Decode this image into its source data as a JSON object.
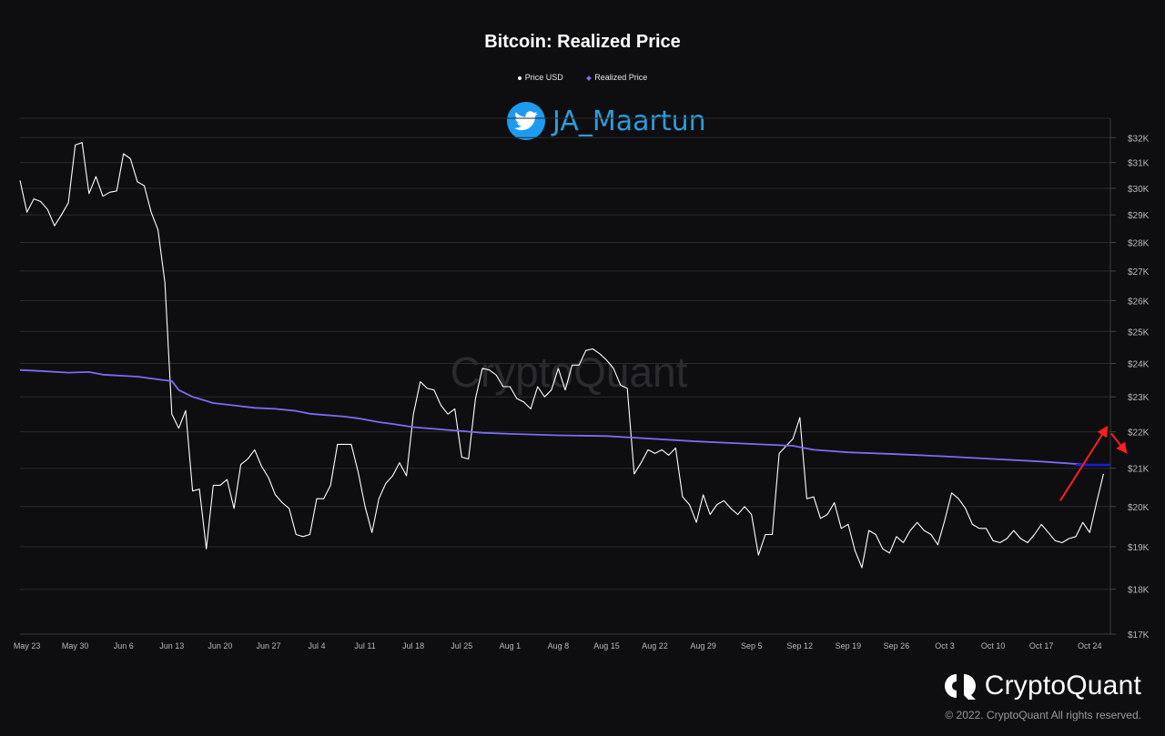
{
  "chart_data": {
    "type": "line",
    "title": "Bitcoin: Realized Price",
    "legend": [
      {
        "label": "Price USD",
        "color": "#ffffff",
        "marker": "dot"
      },
      {
        "label": "Realized Price",
        "color": "#7b6cf6",
        "marker": "diamond"
      }
    ],
    "legend_placement": "top-center",
    "watermark": "CryptoQuant",
    "handle": "JA_Maartun",
    "x_start": "2022-05-22",
    "x_end": "2022-10-27",
    "x_ticks": [
      {
        "date": "2022-05-23",
        "label": "May 23"
      },
      {
        "date": "2022-05-30",
        "label": "May 30"
      },
      {
        "date": "2022-06-06",
        "label": "Jun 6"
      },
      {
        "date": "2022-06-13",
        "label": "Jun 13"
      },
      {
        "date": "2022-06-20",
        "label": "Jun 20"
      },
      {
        "date": "2022-06-27",
        "label": "Jun 27"
      },
      {
        "date": "2022-07-04",
        "label": "Jul 4"
      },
      {
        "date": "2022-07-11",
        "label": "Jul 11"
      },
      {
        "date": "2022-07-18",
        "label": "Jul 18"
      },
      {
        "date": "2022-07-25",
        "label": "Jul 25"
      },
      {
        "date": "2022-08-01",
        "label": "Aug 1"
      },
      {
        "date": "2022-08-08",
        "label": "Aug 8"
      },
      {
        "date": "2022-08-15",
        "label": "Aug 15"
      },
      {
        "date": "2022-08-22",
        "label": "Aug 22"
      },
      {
        "date": "2022-08-29",
        "label": "Aug 29"
      },
      {
        "date": "2022-09-05",
        "label": "Sep 5"
      },
      {
        "date": "2022-09-12",
        "label": "Sep 12"
      },
      {
        "date": "2022-09-19",
        "label": "Sep 19"
      },
      {
        "date": "2022-09-26",
        "label": "Sep 26"
      },
      {
        "date": "2022-10-03",
        "label": "Oct 3"
      },
      {
        "date": "2022-10-10",
        "label": "Oct 10"
      },
      {
        "date": "2022-10-17",
        "label": "Oct 17"
      },
      {
        "date": "2022-10-24",
        "label": "Oct 24"
      }
    ],
    "y_scale": "log",
    "ylim": [
      17000,
      32800
    ],
    "y_ticks": [
      {
        "value": 17000,
        "label": "$17K"
      },
      {
        "value": 18000,
        "label": "$18K"
      },
      {
        "value": 19000,
        "label": "$19K"
      },
      {
        "value": 20000,
        "label": "$20K"
      },
      {
        "value": 21000,
        "label": "$21K"
      },
      {
        "value": 22000,
        "label": "$22K"
      },
      {
        "value": 23000,
        "label": "$23K"
      },
      {
        "value": 24000,
        "label": "$24K"
      },
      {
        "value": 25000,
        "label": "$25K"
      },
      {
        "value": 26000,
        "label": "$26K"
      },
      {
        "value": 27000,
        "label": "$27K"
      },
      {
        "value": 28000,
        "label": "$28K"
      },
      {
        "value": 29000,
        "label": "$29K"
      },
      {
        "value": 30000,
        "label": "$30K"
      },
      {
        "value": 31000,
        "label": "$31K"
      },
      {
        "value": 32000,
        "label": "$32K"
      }
    ],
    "grid": true,
    "series": [
      {
        "name": "Price USD",
        "color": "#ffffff",
        "points": [
          [
            "2022-05-22",
            30300
          ],
          [
            "2022-05-23",
            29100
          ],
          [
            "2022-05-24",
            29600
          ],
          [
            "2022-05-25",
            29500
          ],
          [
            "2022-05-26",
            29200
          ],
          [
            "2022-05-27",
            28600
          ],
          [
            "2022-05-28",
            29000
          ],
          [
            "2022-05-29",
            29450
          ],
          [
            "2022-05-30",
            31700
          ],
          [
            "2022-05-31",
            31800
          ],
          [
            "2022-06-01",
            29800
          ],
          [
            "2022-06-02",
            30450
          ],
          [
            "2022-06-03",
            29700
          ],
          [
            "2022-06-04",
            29850
          ],
          [
            "2022-06-05",
            29900
          ],
          [
            "2022-06-06",
            31350
          ],
          [
            "2022-06-07",
            31150
          ],
          [
            "2022-06-08",
            30250
          ],
          [
            "2022-06-09",
            30100
          ],
          [
            "2022-06-10",
            29100
          ],
          [
            "2022-06-11",
            28450
          ],
          [
            "2022-06-12",
            26600
          ],
          [
            "2022-06-13",
            22500
          ],
          [
            "2022-06-14",
            22100
          ],
          [
            "2022-06-15",
            22600
          ],
          [
            "2022-06-16",
            20400
          ],
          [
            "2022-06-17",
            20450
          ],
          [
            "2022-06-18",
            18950
          ],
          [
            "2022-06-19",
            20550
          ],
          [
            "2022-06-20",
            20550
          ],
          [
            "2022-06-21",
            20700
          ],
          [
            "2022-06-22",
            19950
          ],
          [
            "2022-06-23",
            21100
          ],
          [
            "2022-06-24",
            21250
          ],
          [
            "2022-06-25",
            21500
          ],
          [
            "2022-06-26",
            21050
          ],
          [
            "2022-06-27",
            20750
          ],
          [
            "2022-06-28",
            20300
          ],
          [
            "2022-06-29",
            20100
          ],
          [
            "2022-06-30",
            19950
          ],
          [
            "2022-07-01",
            19300
          ],
          [
            "2022-07-02",
            19250
          ],
          [
            "2022-07-03",
            19300
          ],
          [
            "2022-07-04",
            20200
          ],
          [
            "2022-07-05",
            20200
          ],
          [
            "2022-07-06",
            20550
          ],
          [
            "2022-07-07",
            21650
          ],
          [
            "2022-07-08",
            21650
          ],
          [
            "2022-07-09",
            21650
          ],
          [
            "2022-07-10",
            20900
          ],
          [
            "2022-07-11",
            20000
          ],
          [
            "2022-07-12",
            19350
          ],
          [
            "2022-07-13",
            20200
          ],
          [
            "2022-07-14",
            20600
          ],
          [
            "2022-07-15",
            20800
          ],
          [
            "2022-07-16",
            21150
          ],
          [
            "2022-07-17",
            20800
          ],
          [
            "2022-07-18",
            22500
          ],
          [
            "2022-07-19",
            23450
          ],
          [
            "2022-07-20",
            23250
          ],
          [
            "2022-07-21",
            23200
          ],
          [
            "2022-07-22",
            22750
          ],
          [
            "2022-07-23",
            22500
          ],
          [
            "2022-07-24",
            22650
          ],
          [
            "2022-07-25",
            21300
          ],
          [
            "2022-07-26",
            21250
          ],
          [
            "2022-07-27",
            22950
          ],
          [
            "2022-07-28",
            23850
          ],
          [
            "2022-07-29",
            23800
          ],
          [
            "2022-07-30",
            23650
          ],
          [
            "2022-07-31",
            23300
          ],
          [
            "2022-08-01",
            23300
          ],
          [
            "2022-08-02",
            22950
          ],
          [
            "2022-08-03",
            22850
          ],
          [
            "2022-08-04",
            22650
          ],
          [
            "2022-08-05",
            23300
          ],
          [
            "2022-08-06",
            23000
          ],
          [
            "2022-08-07",
            23200
          ],
          [
            "2022-08-08",
            23850
          ],
          [
            "2022-08-09",
            23200
          ],
          [
            "2022-08-10",
            23950
          ],
          [
            "2022-08-11",
            23950
          ],
          [
            "2022-08-12",
            24400
          ],
          [
            "2022-08-13",
            24450
          ],
          [
            "2022-08-14",
            24300
          ],
          [
            "2022-08-15",
            24100
          ],
          [
            "2022-08-16",
            23850
          ],
          [
            "2022-08-17",
            23350
          ],
          [
            "2022-08-18",
            23250
          ],
          [
            "2022-08-19",
            20850
          ],
          [
            "2022-08-20",
            21150
          ],
          [
            "2022-08-21",
            21500
          ],
          [
            "2022-08-22",
            21400
          ],
          [
            "2022-08-23",
            21500
          ],
          [
            "2022-08-24",
            21350
          ],
          [
            "2022-08-25",
            21550
          ],
          [
            "2022-08-26",
            20250
          ],
          [
            "2022-08-27",
            20050
          ],
          [
            "2022-08-28",
            19600
          ],
          [
            "2022-08-29",
            20300
          ],
          [
            "2022-08-30",
            19800
          ],
          [
            "2022-08-31",
            20050
          ],
          [
            "2022-09-01",
            20150
          ],
          [
            "2022-09-02",
            19950
          ],
          [
            "2022-09-03",
            19800
          ],
          [
            "2022-09-04",
            20000
          ],
          [
            "2022-09-05",
            19800
          ],
          [
            "2022-09-06",
            18800
          ],
          [
            "2022-09-07",
            19300
          ],
          [
            "2022-09-08",
            19300
          ],
          [
            "2022-09-09",
            21400
          ],
          [
            "2022-09-10",
            21600
          ],
          [
            "2022-09-11",
            21800
          ],
          [
            "2022-09-12",
            22400
          ],
          [
            "2022-09-13",
            20200
          ],
          [
            "2022-09-14",
            20250
          ],
          [
            "2022-09-15",
            19700
          ],
          [
            "2022-09-16",
            19800
          ],
          [
            "2022-09-17",
            20100
          ],
          [
            "2022-09-18",
            19450
          ],
          [
            "2022-09-19",
            19550
          ],
          [
            "2022-09-20",
            18900
          ],
          [
            "2022-09-21",
            18500
          ],
          [
            "2022-09-22",
            19400
          ],
          [
            "2022-09-23",
            19300
          ],
          [
            "2022-09-24",
            18950
          ],
          [
            "2022-09-25",
            18850
          ],
          [
            "2022-09-26",
            19250
          ],
          [
            "2022-09-27",
            19100
          ],
          [
            "2022-09-28",
            19400
          ],
          [
            "2022-09-29",
            19600
          ],
          [
            "2022-09-30",
            19400
          ],
          [
            "2022-10-01",
            19300
          ],
          [
            "2022-10-02",
            19050
          ],
          [
            "2022-10-03",
            19650
          ],
          [
            "2022-10-04",
            20350
          ],
          [
            "2022-10-05",
            20200
          ],
          [
            "2022-10-06",
            19950
          ],
          [
            "2022-10-07",
            19550
          ],
          [
            "2022-10-08",
            19450
          ],
          [
            "2022-10-09",
            19450
          ],
          [
            "2022-10-10",
            19150
          ],
          [
            "2022-10-11",
            19100
          ],
          [
            "2022-10-12",
            19200
          ],
          [
            "2022-10-13",
            19400
          ],
          [
            "2022-10-14",
            19200
          ],
          [
            "2022-10-15",
            19100
          ],
          [
            "2022-10-16",
            19300
          ],
          [
            "2022-10-17",
            19550
          ],
          [
            "2022-10-18",
            19350
          ],
          [
            "2022-10-19",
            19150
          ],
          [
            "2022-10-20",
            19100
          ],
          [
            "2022-10-21",
            19200
          ],
          [
            "2022-10-22",
            19250
          ],
          [
            "2022-10-23",
            19600
          ],
          [
            "2022-10-24",
            19350
          ],
          [
            "2022-10-25",
            20100
          ],
          [
            "2022-10-26",
            20850
          ]
        ]
      },
      {
        "name": "Realized Price",
        "color": "#7b6cf6",
        "points": [
          [
            "2022-05-22",
            23800
          ],
          [
            "2022-05-25",
            23770
          ],
          [
            "2022-05-29",
            23720
          ],
          [
            "2022-06-01",
            23740
          ],
          [
            "2022-06-03",
            23660
          ],
          [
            "2022-06-08",
            23600
          ],
          [
            "2022-06-12",
            23490
          ],
          [
            "2022-06-13",
            23470
          ],
          [
            "2022-06-14",
            23200
          ],
          [
            "2022-06-16",
            23000
          ],
          [
            "2022-06-19",
            22820
          ],
          [
            "2022-06-22",
            22750
          ],
          [
            "2022-06-25",
            22680
          ],
          [
            "2022-06-28",
            22650
          ],
          [
            "2022-07-01",
            22590
          ],
          [
            "2022-07-03",
            22510
          ],
          [
            "2022-07-08",
            22430
          ],
          [
            "2022-07-10",
            22380
          ],
          [
            "2022-07-13",
            22270
          ],
          [
            "2022-07-15",
            22220
          ],
          [
            "2022-07-18",
            22130
          ],
          [
            "2022-07-23",
            22050
          ],
          [
            "2022-07-28",
            21970
          ],
          [
            "2022-08-01",
            21940
          ],
          [
            "2022-08-08",
            21900
          ],
          [
            "2022-08-15",
            21880
          ],
          [
            "2022-08-21",
            21810
          ],
          [
            "2022-08-28",
            21730
          ],
          [
            "2022-09-04",
            21670
          ],
          [
            "2022-09-11",
            21610
          ],
          [
            "2022-09-14",
            21500
          ],
          [
            "2022-09-19",
            21430
          ],
          [
            "2022-09-26",
            21380
          ],
          [
            "2022-10-03",
            21320
          ],
          [
            "2022-10-10",
            21250
          ],
          [
            "2022-10-17",
            21180
          ],
          [
            "2022-10-24",
            21090
          ],
          [
            "2022-10-27",
            21090
          ]
        ]
      }
    ],
    "annotation_arrows_color": "#ff1e1e"
  },
  "footer": {
    "brand": "CryptoQuant",
    "copyright": "© 2022. CryptoQuant All rights reserved."
  },
  "icons": {
    "handle_icon": "twitter-bird-icon",
    "brand_icon": "cryptoquant-logo-icon"
  }
}
